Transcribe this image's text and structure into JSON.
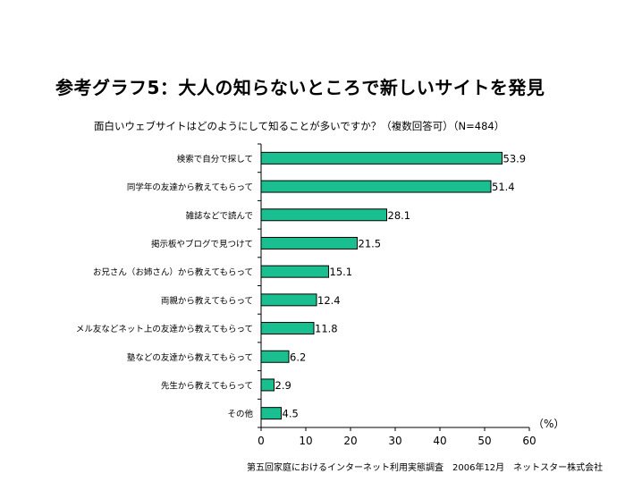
{
  "page": {
    "title": "参考グラフ5：大人の知らないところで新しいサイトを発見",
    "subtitle": "面白いウェブサイトはどのようにして知ることが多いですか？（複数回答可）（N=484）",
    "source": "第五回家庭におけるインターネット利用実態調査　2006年12月　ネットスター株式会社"
  },
  "chart_data": {
    "type": "bar",
    "orientation": "horizontal",
    "title": "面白いウェブサイトはどのようにして知ることが多いですか？（複数回答可）（N=484）",
    "categories": [
      "検索で自分で探して",
      "同学年の友達から教えてもらって",
      "雑誌などで読んで",
      "掲示板やブログで見つけて",
      "お兄さん（お姉さん）から教えてもらって",
      "両親から教えてもらって",
      "メル友などネット上の友達から教えてもらって",
      "塾などの友達から教えてもらって",
      "先生から教えてもらって",
      "その他"
    ],
    "values": [
      53.9,
      51.4,
      28.1,
      21.5,
      15.1,
      12.4,
      11.8,
      6.2,
      2.9,
      4.5
    ],
    "value_labels": [
      "53.9",
      "51.4",
      "28.1",
      "21.5",
      "15.1",
      "12.4",
      "11.8",
      "6.2",
      "2.9",
      "4.5"
    ],
    "xlim": [
      0,
      60
    ],
    "xticks": [
      0,
      10,
      20,
      30,
      40,
      50,
      60
    ],
    "unit_label": "（%）",
    "bar_color": "#19bf8e",
    "bar_edge_color": "#000000",
    "grid": false
  }
}
